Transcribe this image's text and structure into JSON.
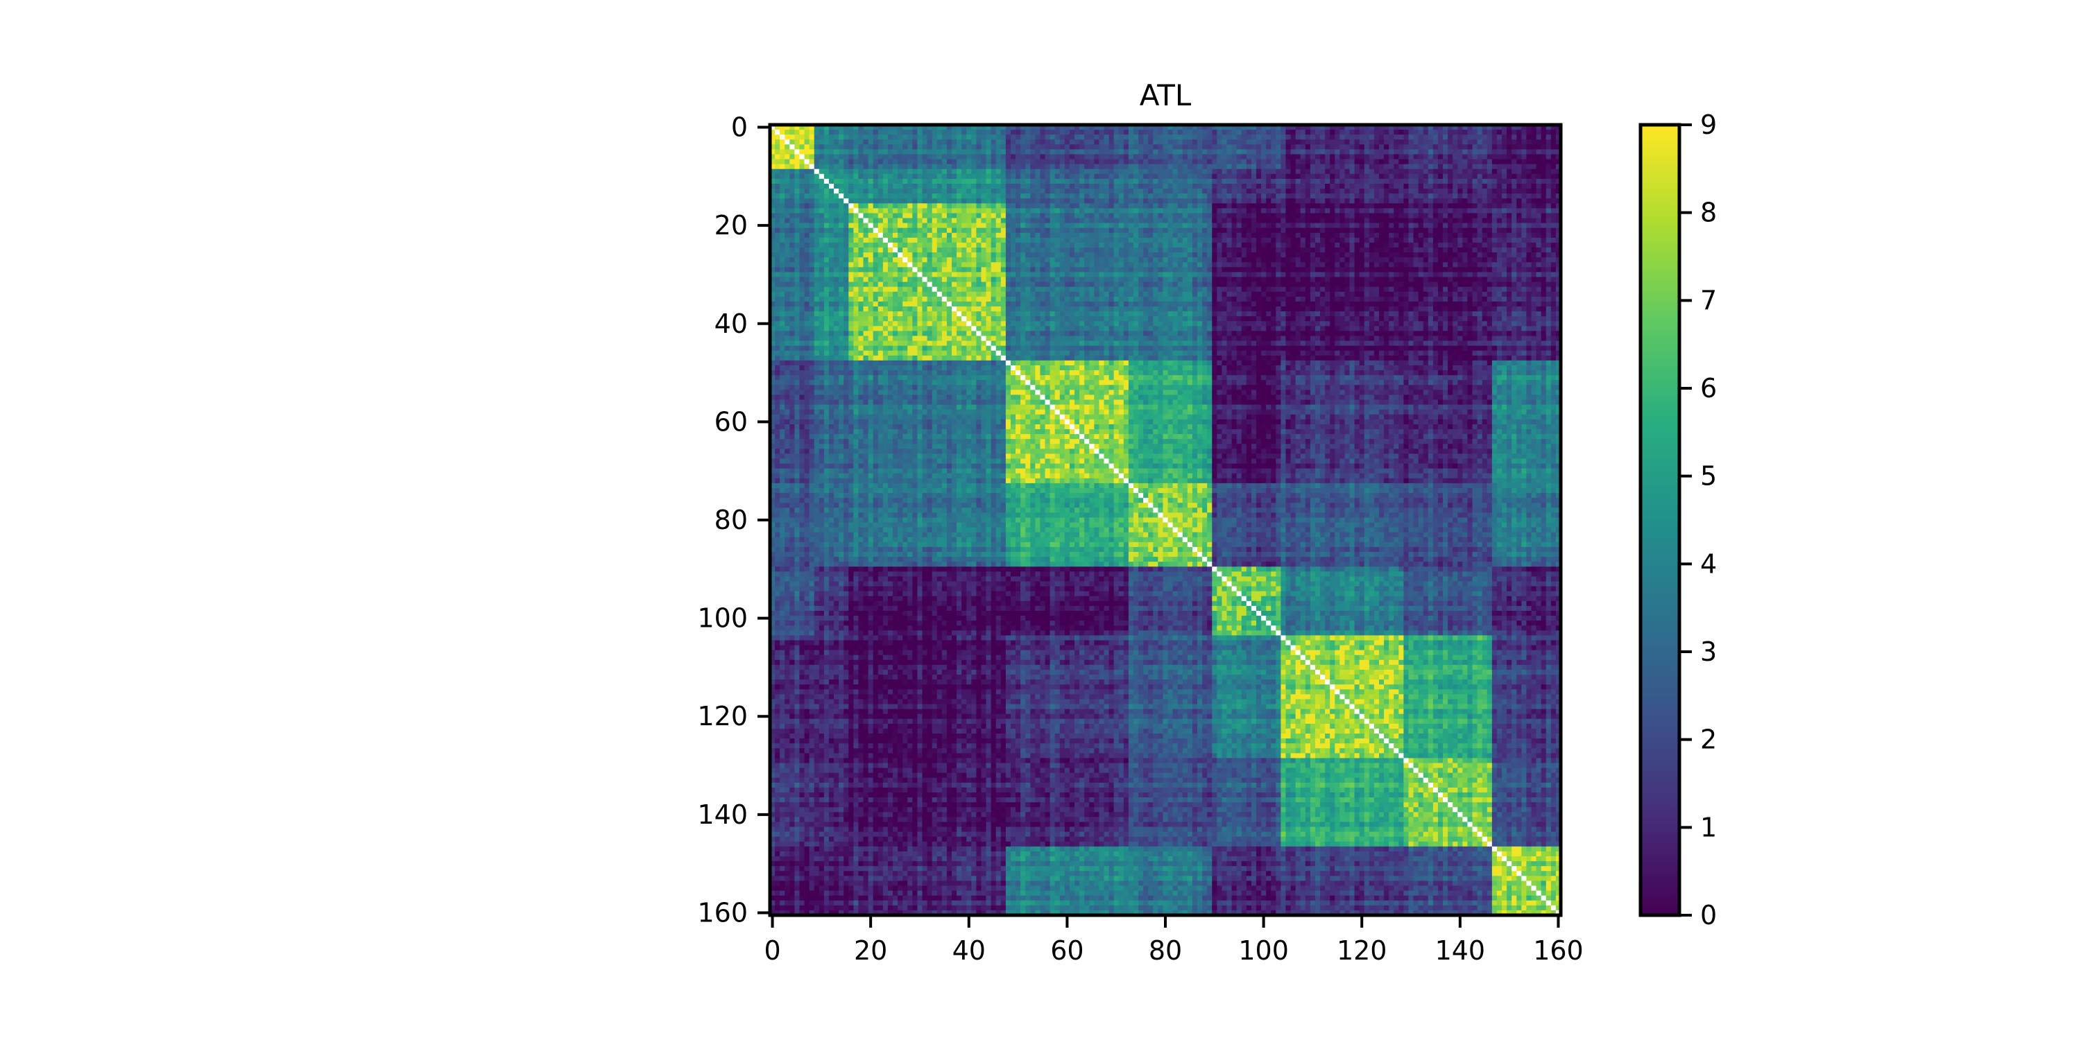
{
  "chart_data": {
    "type": "heatmap",
    "title": "ATL",
    "xlabel": "",
    "ylabel": "",
    "n": 161,
    "xlim": [
      0,
      160
    ],
    "ylim": [
      160,
      0
    ],
    "x_ticks": [
      0,
      20,
      40,
      60,
      80,
      100,
      120,
      140,
      160
    ],
    "y_ticks": [
      0,
      20,
      40,
      60,
      80,
      100,
      120,
      140,
      160
    ],
    "x_tick_labels": [
      "0",
      "20",
      "40",
      "60",
      "80",
      "100",
      "120",
      "140",
      "160"
    ],
    "y_tick_labels": [
      "0",
      "20",
      "40",
      "60",
      "80",
      "100",
      "120",
      "140",
      "160"
    ],
    "colormap": "viridis",
    "colorbar": {
      "min": 0,
      "max": 9,
      "ticks": [
        0,
        1,
        2,
        3,
        4,
        5,
        6,
        7,
        8,
        9
      ],
      "tick_labels": [
        "0",
        "1",
        "2",
        "3",
        "4",
        "5",
        "6",
        "7",
        "8",
        "9"
      ]
    },
    "diagonal_color": "#ffffff",
    "blocks": [
      {
        "start": 0,
        "end": 9,
        "within": 8.3
      },
      {
        "start": 9,
        "end": 16,
        "within": 5.0
      },
      {
        "start": 16,
        "end": 48,
        "within": 7.0
      },
      {
        "start": 48,
        "end": 73,
        "within": 7.2
      },
      {
        "start": 73,
        "end": 90,
        "within": 6.8
      },
      {
        "start": 90,
        "end": 104,
        "within": 6.5
      },
      {
        "start": 104,
        "end": 129,
        "within": 7.2
      },
      {
        "start": 129,
        "end": 147,
        "within": 6.8
      },
      {
        "start": 147,
        "end": 161,
        "within": 7.2
      }
    ],
    "between_block_values": [
      [
        8.3,
        4.0,
        3.5,
        2.0,
        2.5,
        2.5,
        1.0,
        1.5,
        0.5
      ],
      [
        4.0,
        5.0,
        4.5,
        3.0,
        3.0,
        1.5,
        1.0,
        1.0,
        0.5
      ],
      [
        3.5,
        4.5,
        7.0,
        3.5,
        3.5,
        0.5,
        0.3,
        0.5,
        1.0
      ],
      [
        2.0,
        3.0,
        3.5,
        7.2,
        5.5,
        0.5,
        1.5,
        1.0,
        4.0
      ],
      [
        2.5,
        3.0,
        3.5,
        5.5,
        6.8,
        2.0,
        2.5,
        2.0,
        3.5
      ],
      [
        2.5,
        1.5,
        0.5,
        0.5,
        2.0,
        6.5,
        4.0,
        2.5,
        1.0
      ],
      [
        1.0,
        1.0,
        0.3,
        1.5,
        2.5,
        4.0,
        7.2,
        5.5,
        1.5
      ],
      [
        1.5,
        1.0,
        0.5,
        1.0,
        2.0,
        2.5,
        5.5,
        6.8,
        2.0
      ],
      [
        0.5,
        0.5,
        1.0,
        4.0,
        3.5,
        1.0,
        1.5,
        2.0,
        7.2
      ]
    ]
  }
}
